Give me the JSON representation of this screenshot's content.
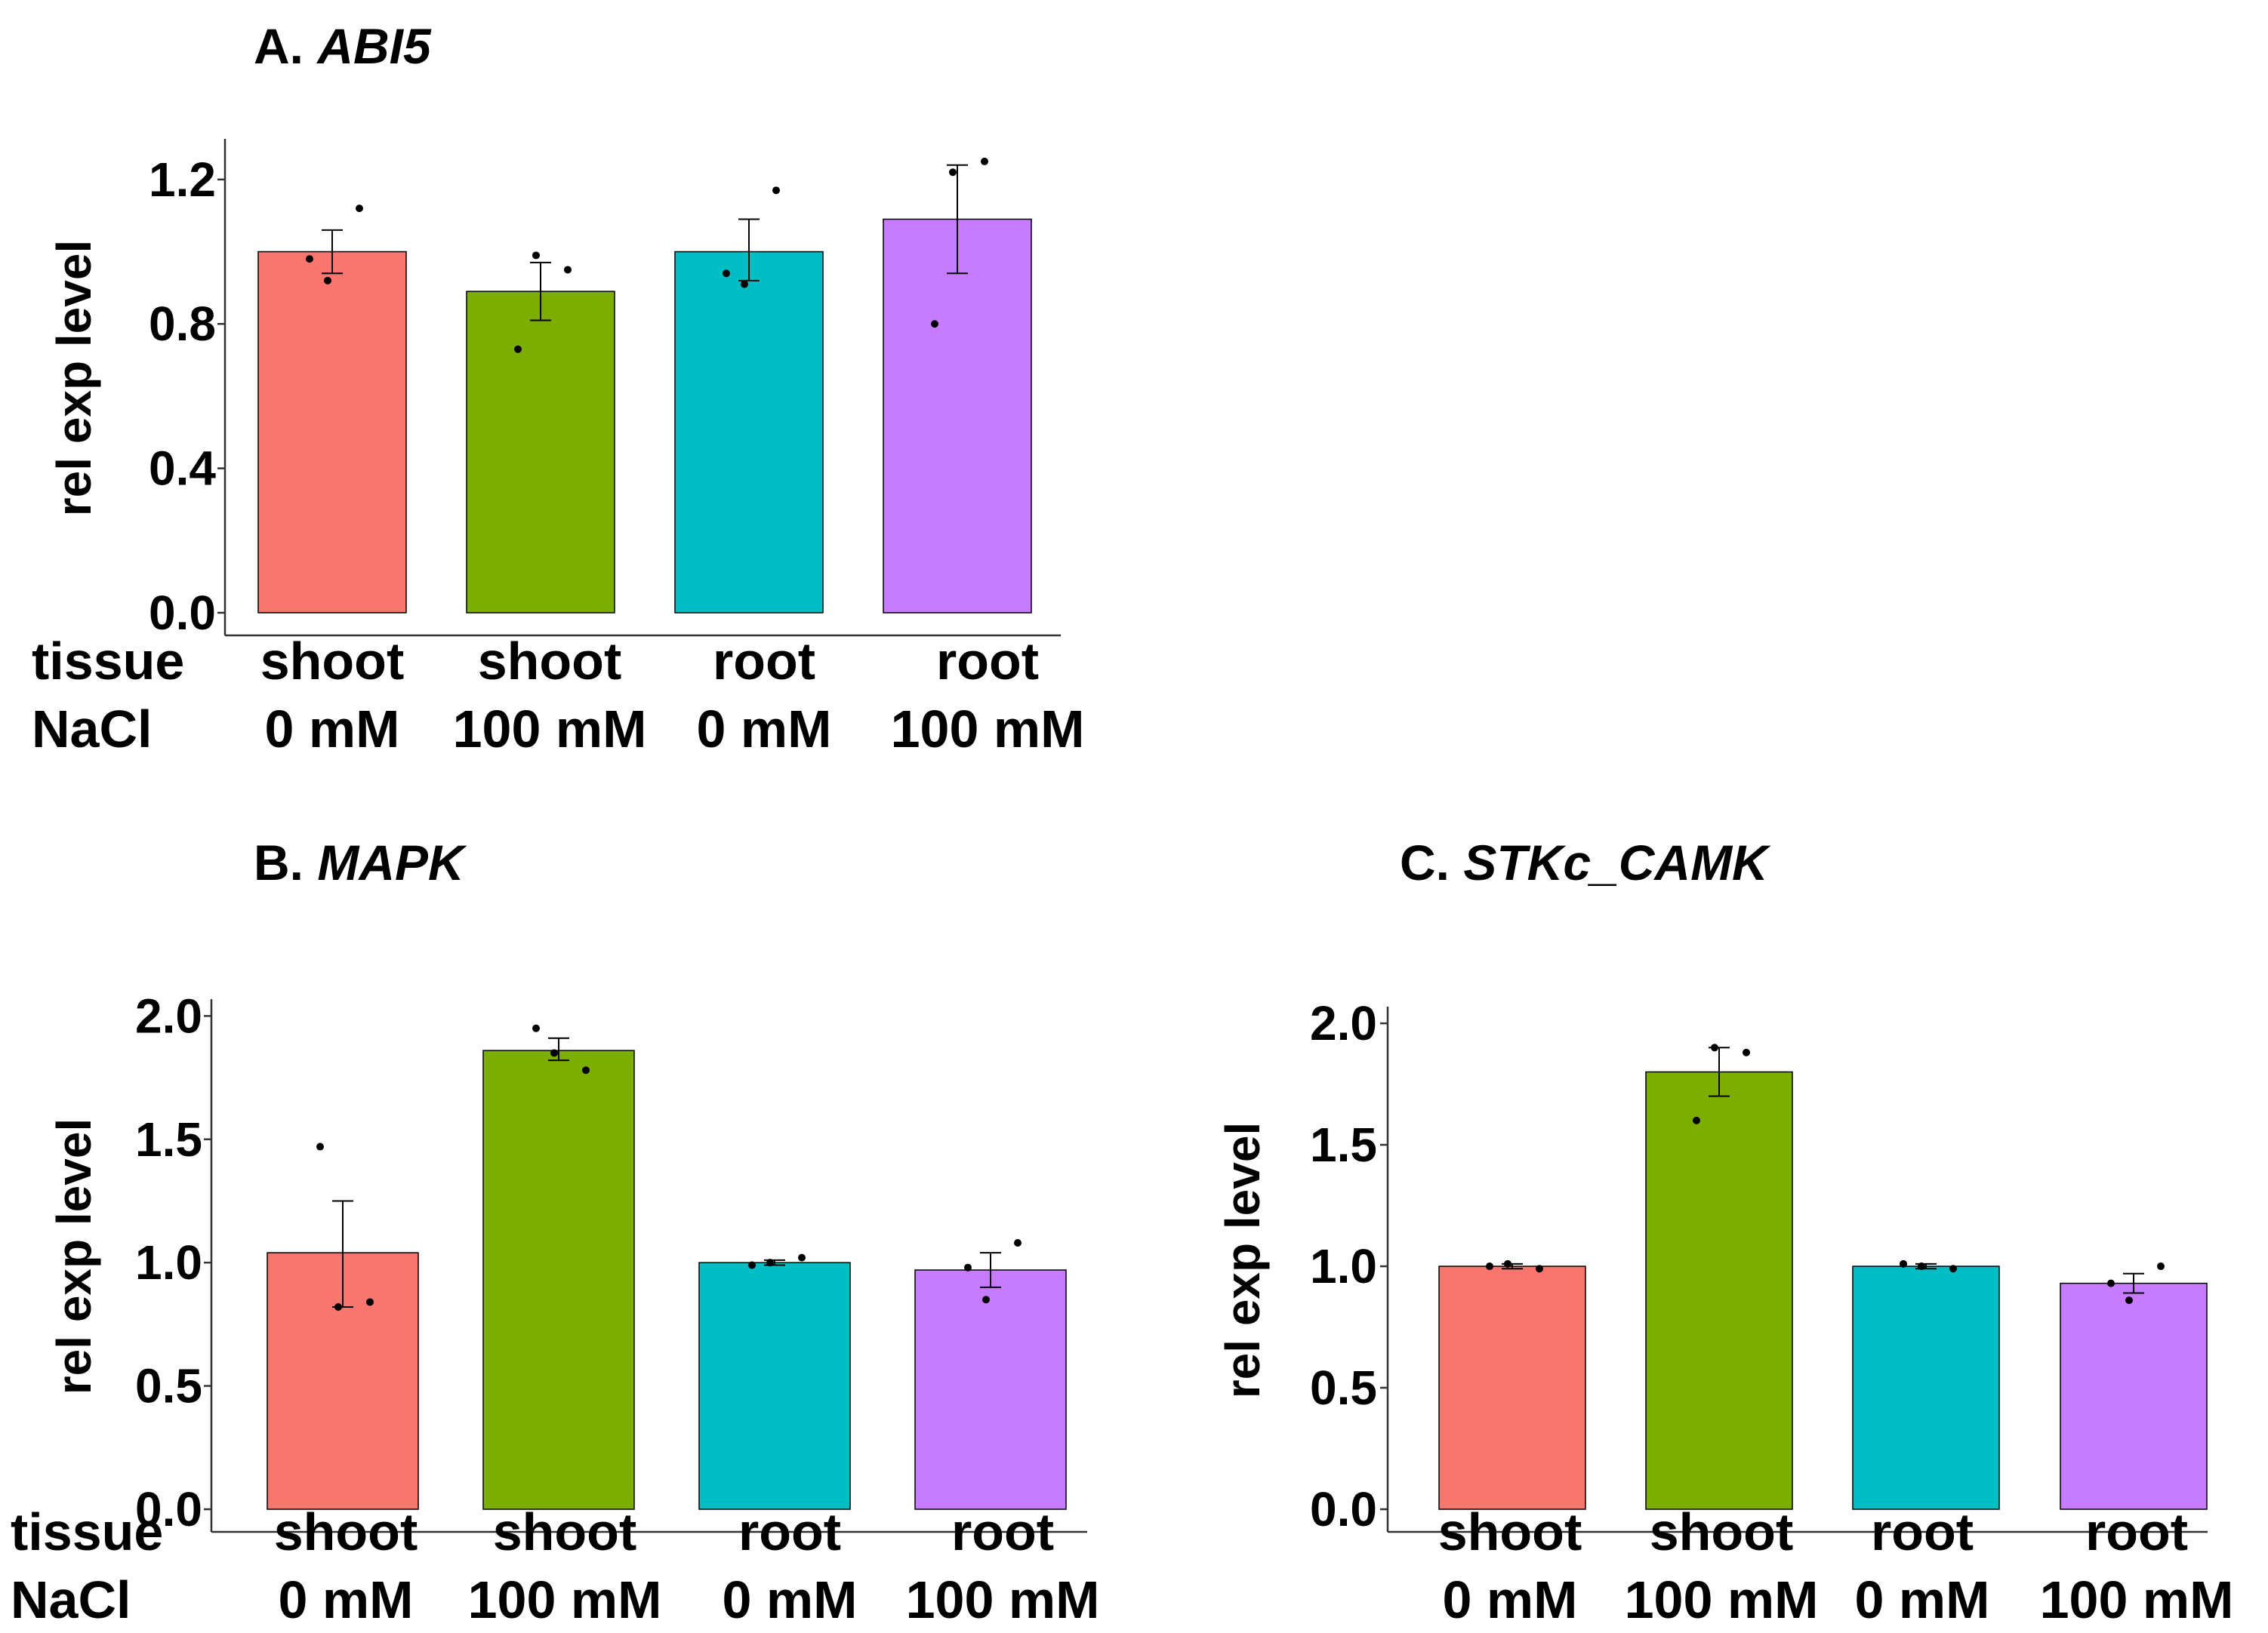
{
  "colors": {
    "shoot_0": "#F8766D",
    "shoot_100": "#7CAE00",
    "root_0": "#00BFC4",
    "root_100": "#C77CFF",
    "axis": "#333333",
    "point": "#000000"
  },
  "row_labels": {
    "tissue": "tissue",
    "nacl": "NaCl"
  },
  "chart_data": [
    {
      "type": "bar",
      "title_prefix": "A.",
      "title_gene": "ABI5",
      "ylabel": "rel exp level",
      "ylim": [
        0,
        1.3
      ],
      "yticks": [
        "0.0",
        "0.4",
        "0.8",
        "1.2"
      ],
      "ytick_values": [
        0.0,
        0.4,
        0.8,
        1.2
      ],
      "show_row_labels": true,
      "categories": [
        {
          "tissue": "shoot",
          "nacl": "0 mM",
          "color_key": "shoot_0",
          "value": 1.0,
          "err_low": 0.94,
          "err_high": 1.06,
          "points": [
            0.98,
            0.92,
            1.12
          ]
        },
        {
          "tissue": "shoot",
          "nacl": "100 mM",
          "color_key": "shoot_100",
          "value": 0.89,
          "err_low": 0.81,
          "err_high": 0.97,
          "points": [
            0.73,
            0.99,
            0.95
          ]
        },
        {
          "tissue": "root",
          "nacl": "0 mM",
          "color_key": "root_0",
          "value": 1.0,
          "err_low": 0.92,
          "err_high": 1.09,
          "points": [
            0.94,
            0.91,
            1.17
          ]
        },
        {
          "tissue": "root",
          "nacl": "100 mM",
          "color_key": "root_100",
          "value": 1.09,
          "err_low": 0.94,
          "err_high": 1.24,
          "points": [
            0.8,
            1.22,
            1.25
          ]
        }
      ]
    },
    {
      "type": "bar",
      "title_prefix": "B.",
      "title_gene": "MAPK",
      "ylabel": "rel exp level",
      "ylim": [
        0,
        2.05
      ],
      "yticks": [
        "0.0",
        "0.5",
        "1.0",
        "1.5",
        "2.0"
      ],
      "ytick_values": [
        0.0,
        0.5,
        1.0,
        1.5,
        2.0
      ],
      "show_row_labels": true,
      "categories": [
        {
          "tissue": "shoot",
          "nacl": "0 mM",
          "color_key": "shoot_0",
          "value": 1.04,
          "err_low": 0.82,
          "err_high": 1.25,
          "points": [
            1.47,
            0.82,
            0.84
          ]
        },
        {
          "tissue": "shoot",
          "nacl": "100 mM",
          "color_key": "shoot_100",
          "value": 1.86,
          "err_low": 1.82,
          "err_high": 1.91,
          "points": [
            1.95,
            1.85,
            1.78
          ]
        },
        {
          "tissue": "root",
          "nacl": "0 mM",
          "color_key": "root_0",
          "value": 1.0,
          "err_low": 0.99,
          "err_high": 1.01,
          "points": [
            0.99,
            1.0,
            1.02
          ]
        },
        {
          "tissue": "root",
          "nacl": "100 mM",
          "color_key": "root_100",
          "value": 0.97,
          "err_low": 0.9,
          "err_high": 1.04,
          "points": [
            0.98,
            0.85,
            1.08
          ]
        }
      ]
    },
    {
      "type": "bar",
      "title_prefix": "C.",
      "title_gene": "STKc_CAMK",
      "ylabel": "rel exp level",
      "ylim": [
        0,
        2.05
      ],
      "yticks": [
        "0.0",
        "0.5",
        "1.0",
        "1.5",
        "2.0"
      ],
      "ytick_values": [
        0.0,
        0.5,
        1.0,
        1.5,
        2.0
      ],
      "show_row_labels": false,
      "categories": [
        {
          "tissue": "shoot",
          "nacl": "0 mM",
          "color_key": "shoot_0",
          "value": 1.0,
          "err_low": 0.99,
          "err_high": 1.01,
          "points": [
            1.0,
            1.01,
            0.99
          ]
        },
        {
          "tissue": "shoot",
          "nacl": "100 mM",
          "color_key": "shoot_100",
          "value": 1.8,
          "err_low": 1.7,
          "err_high": 1.9,
          "points": [
            1.6,
            1.9,
            1.88
          ]
        },
        {
          "tissue": "root",
          "nacl": "0 mM",
          "color_key": "root_0",
          "value": 1.0,
          "err_low": 0.99,
          "err_high": 1.01,
          "points": [
            1.01,
            1.0,
            0.99
          ]
        },
        {
          "tissue": "root",
          "nacl": "100 mM",
          "color_key": "root_100",
          "value": 0.93,
          "err_low": 0.89,
          "err_high": 0.97,
          "points": [
            0.93,
            0.86,
            1.0
          ]
        }
      ]
    }
  ]
}
